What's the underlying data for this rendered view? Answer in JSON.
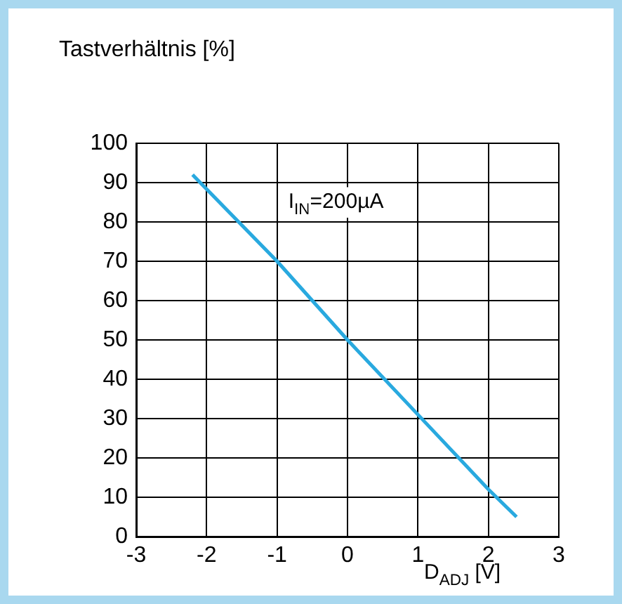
{
  "chart_data": {
    "type": "line",
    "ylabel": "Tastverhältnis [%]",
    "xlabel": "D$_{ADJ}$ [V]",
    "x": [
      -2.2,
      -1,
      0,
      1,
      2,
      2.4
    ],
    "series": [
      {
        "color": "#29a9df",
        "values": [
          92,
          70,
          50,
          31,
          12,
          5
        ]
      }
    ],
    "xlim": [
      -3,
      3
    ],
    "xticks": [
      -3,
      -2,
      -1,
      0,
      1,
      2,
      3
    ],
    "ylim": [
      0,
      100
    ],
    "yticks": [
      0,
      10,
      20,
      30,
      40,
      50,
      60,
      70,
      80,
      90,
      100
    ],
    "grid": true,
    "legend": false,
    "marker": "none",
    "line_style": "solid",
    "annotations": [
      "I$_{IN}$=200µA"
    ]
  }
}
